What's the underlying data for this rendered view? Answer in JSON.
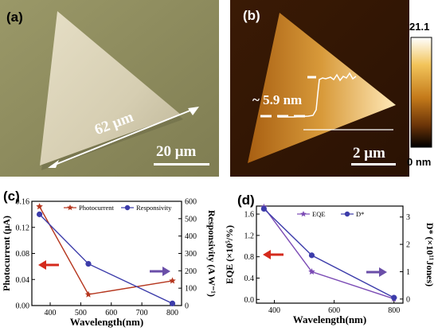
{
  "panels": {
    "a": {
      "label": "(a)",
      "edge_length_label": "62 μm",
      "scale_bar_label": "20 μm",
      "colors": {
        "background": "#8c8a5c",
        "flake": "#d9d2b8"
      }
    },
    "b": {
      "label": "(b)",
      "height_label": "~ 5.9 nm",
      "scale_bar_label": "2 μm",
      "colorbar": {
        "max_label": "21.1",
        "min_label": "0 nm",
        "colors": [
          "#ffffff",
          "#f2c45a",
          "#c47a1a",
          "#6b3408",
          "#000000"
        ]
      }
    }
  },
  "chart_data": [
    {
      "panel": "(c)",
      "type": "line",
      "xlabel": "Wavelength(nm)",
      "ylabel_left": "Photocurrent (μA)",
      "ylabel_right": "Responsivity (A W⁻¹)",
      "xlim": [
        340,
        830
      ],
      "ylim_left": [
        0,
        0.16
      ],
      "ylim_right": [
        0,
        600
      ],
      "xticks": [
        400,
        500,
        600,
        700,
        800
      ],
      "yticks_left": [
        "0.00",
        "0.04",
        "0.08",
        "0.12",
        "0.16"
      ],
      "yticks_right": [
        "0",
        "100",
        "200",
        "300",
        "400",
        "500",
        "600"
      ],
      "legend_position": "top",
      "series": [
        {
          "name": "Photocurrent",
          "axis": "left",
          "marker": "star",
          "color": "#b5361e",
          "x": [
            365,
            525,
            800
          ],
          "y": [
            0.152,
            0.017,
            0.038
          ]
        },
        {
          "name": "Responsivity",
          "axis": "right",
          "marker": "circle",
          "color": "#3c3caa",
          "x": [
            365,
            525,
            800
          ],
          "y": [
            525,
            240,
            12
          ]
        }
      ],
      "annotations": {
        "left_arrow_color": "#d42a1c",
        "right_arrow_color": "#6a4ea8"
      }
    },
    {
      "panel": "(d)",
      "type": "line",
      "xlabel": "Wavelength(nm)",
      "ylabel_left": "EQE (×10⁵/%)",
      "ylabel_right": "D* (×10¹¹Jones)",
      "xlim": [
        340,
        830
      ],
      "ylim_left": [
        -0.07,
        1.75
      ],
      "ylim_right": [
        -0.15,
        3.4
      ],
      "xticks": [
        400,
        600,
        800
      ],
      "yticks_left": [
        "0.0",
        "0.4",
        "0.8",
        "1.2",
        "1.6"
      ],
      "yticks_right": [
        "0",
        "1",
        "2",
        "3"
      ],
      "legend_position": "top",
      "series": [
        {
          "name": "EQE",
          "axis": "left",
          "marker": "star",
          "color": "#7b4bb5",
          "x": [
            365,
            525,
            800
          ],
          "y": [
            1.73,
            0.52,
            0.01
          ]
        },
        {
          "name": "D*",
          "axis": "right",
          "marker": "circle",
          "color": "#3c3caa",
          "x": [
            365,
            525,
            800
          ],
          "y": [
            3.3,
            1.6,
            0.05
          ]
        }
      ],
      "annotations": {
        "left_arrow_color": "#d42a1c",
        "right_arrow_color": "#6a4ea8"
      }
    }
  ]
}
